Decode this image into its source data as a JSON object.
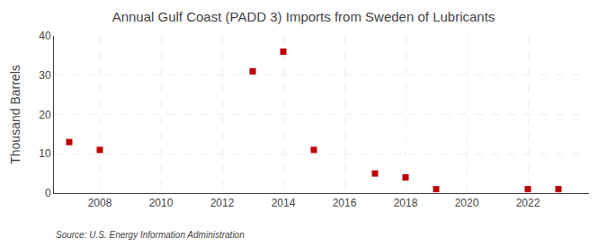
{
  "chart_data": {
    "type": "scatter",
    "title": "Annual Gulf Coast (PADD 3) Imports from Sweden of Lubricants",
    "y_label": "Thousand Barrels",
    "annotations": [
      "Source: U.S. Energy Information Administration"
    ],
    "x": [
      2007,
      2008,
      2013,
      2014,
      2015,
      2017,
      2018,
      2019,
      2022,
      2023
    ],
    "values": [
      13,
      11,
      31,
      36,
      11,
      5,
      4,
      1,
      1,
      1
    ],
    "color": "#bb0000",
    "marker": "square",
    "xlim": [
      2006.5,
      2024
    ],
    "xticks": [
      2008,
      2010,
      2012,
      2014,
      2016,
      2018,
      2020,
      2022
    ],
    "ylim": [
      0,
      40
    ],
    "yticks": [
      0,
      10,
      20,
      30,
      40
    ],
    "grid": true
  }
}
